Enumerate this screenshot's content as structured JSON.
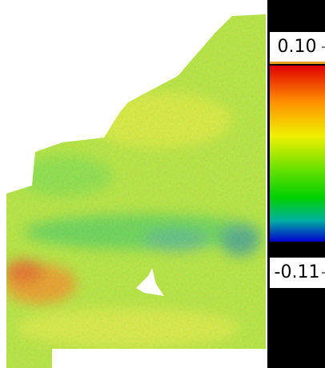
{
  "colorbar": {
    "ticks": [
      {
        "value": 0.1,
        "label": "0.10"
      },
      -0.11
    ]
  }
}
